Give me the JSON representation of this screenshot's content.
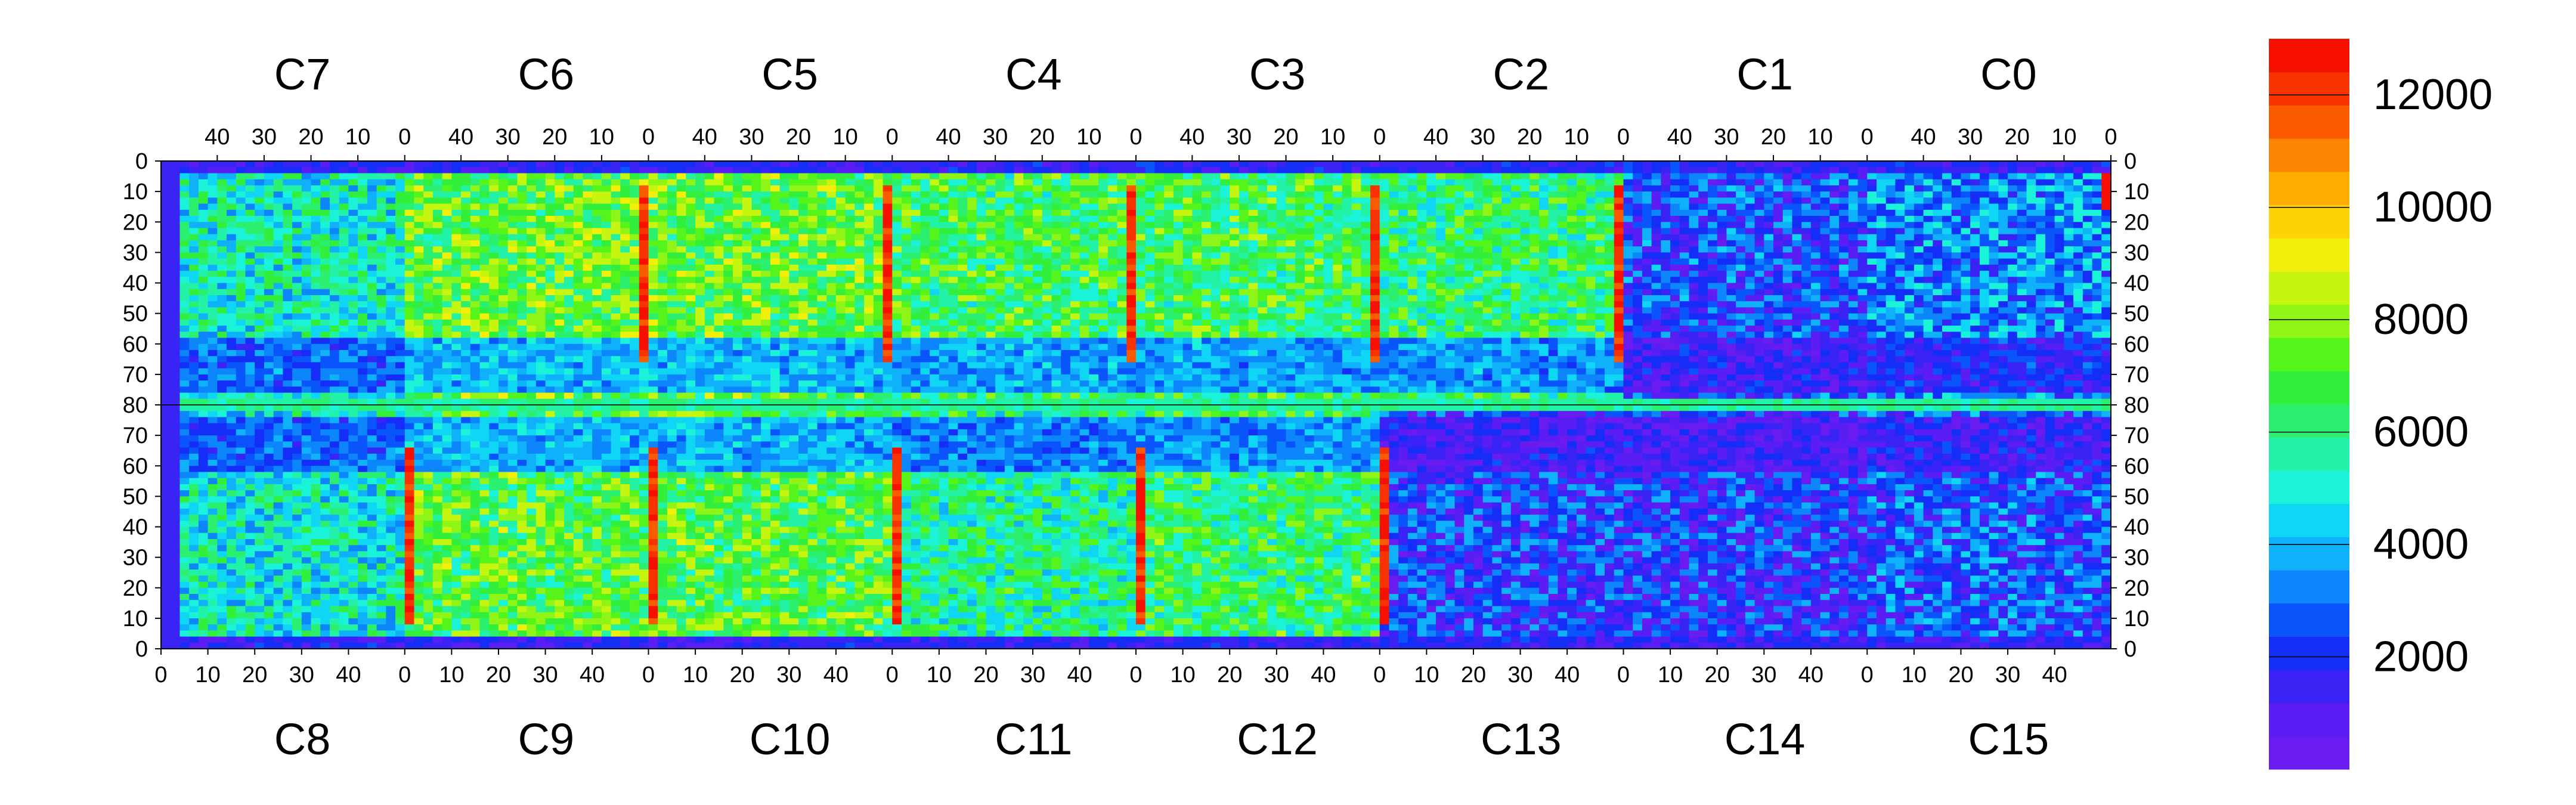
{
  "chart_data": {
    "type": "heatmap",
    "title": "",
    "xlabel": "",
    "ylabel": "",
    "top_chip_labels": [
      "C7",
      "C6",
      "C5",
      "C4",
      "C3",
      "C2",
      "C1",
      "C0"
    ],
    "bottom_chip_labels": [
      "C8",
      "C9",
      "C10",
      "C11",
      "C12",
      "C13",
      "C14",
      "C15"
    ],
    "top_x_ticks": [
      "40",
      "30",
      "20",
      "10",
      "0"
    ],
    "bottom_x_ticks": [
      "0",
      "10",
      "20",
      "30",
      "40"
    ],
    "x_range_per_chip": [
      0,
      52
    ],
    "y_range_top": [
      0,
      80
    ],
    "y_range_bottom": [
      80,
      0
    ],
    "y_ticks_top": [
      "0",
      "10",
      "20",
      "30",
      "40",
      "50",
      "60",
      "70",
      "80"
    ],
    "y_ticks_bottom": [
      "70",
      "60",
      "50",
      "40",
      "30",
      "20",
      "10",
      "0"
    ],
    "z_range": [
      0,
      13000
    ],
    "colorbar_ticks": [
      "2000",
      "4000",
      "6000",
      "8000",
      "10000",
      "12000"
    ],
    "colorbar_tick_values": [
      2000,
      4000,
      6000,
      8000,
      10000,
      12000
    ],
    "colorbar_palette": [
      "#6a1cf0",
      "#5a1df3",
      "#3a24f5",
      "#142ef8",
      "#0a55fb",
      "#0d86fc",
      "#0fb1fb",
      "#10d6f5",
      "#1af3d7",
      "#22f2a6",
      "#2bf06f",
      "#31ef3b",
      "#55f51c",
      "#8ef516",
      "#c6f50f",
      "#f2f00a",
      "#fcd305",
      "#fdac02",
      "#fd8400",
      "#fb5b00",
      "#f93300",
      "#f70f00"
    ],
    "chip_mean_levels_top": [
      5200,
      7200,
      7200,
      6600,
      6600,
      6200,
      2400,
      3400
    ],
    "chip_mean_levels_bottom": [
      5000,
      7000,
      7000,
      5800,
      6400,
      2200,
      2000,
      2600
    ],
    "description_markers": {
      "hot_columns_at_chip_edge": [
        1,
        2,
        3,
        4,
        5
      ],
      "dead_pixels_chip": "C13"
    }
  }
}
